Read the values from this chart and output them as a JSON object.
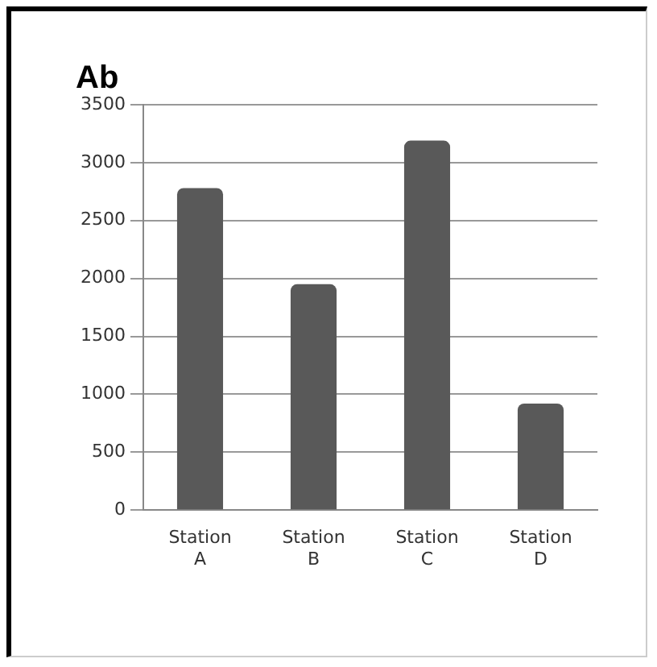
{
  "chart_data": {
    "type": "bar",
    "ylabel": "Ab",
    "categories": [
      "Station A",
      "Station B",
      "Station C",
      "Station D"
    ],
    "values": [
      2780,
      1950,
      3190,
      920
    ],
    "color": "#595959",
    "ylim": [
      0,
      3500
    ],
    "yticks": [
      0,
      500,
      1000,
      1500,
      2000,
      2500,
      3000,
      3500
    ],
    "grid": "y"
  }
}
